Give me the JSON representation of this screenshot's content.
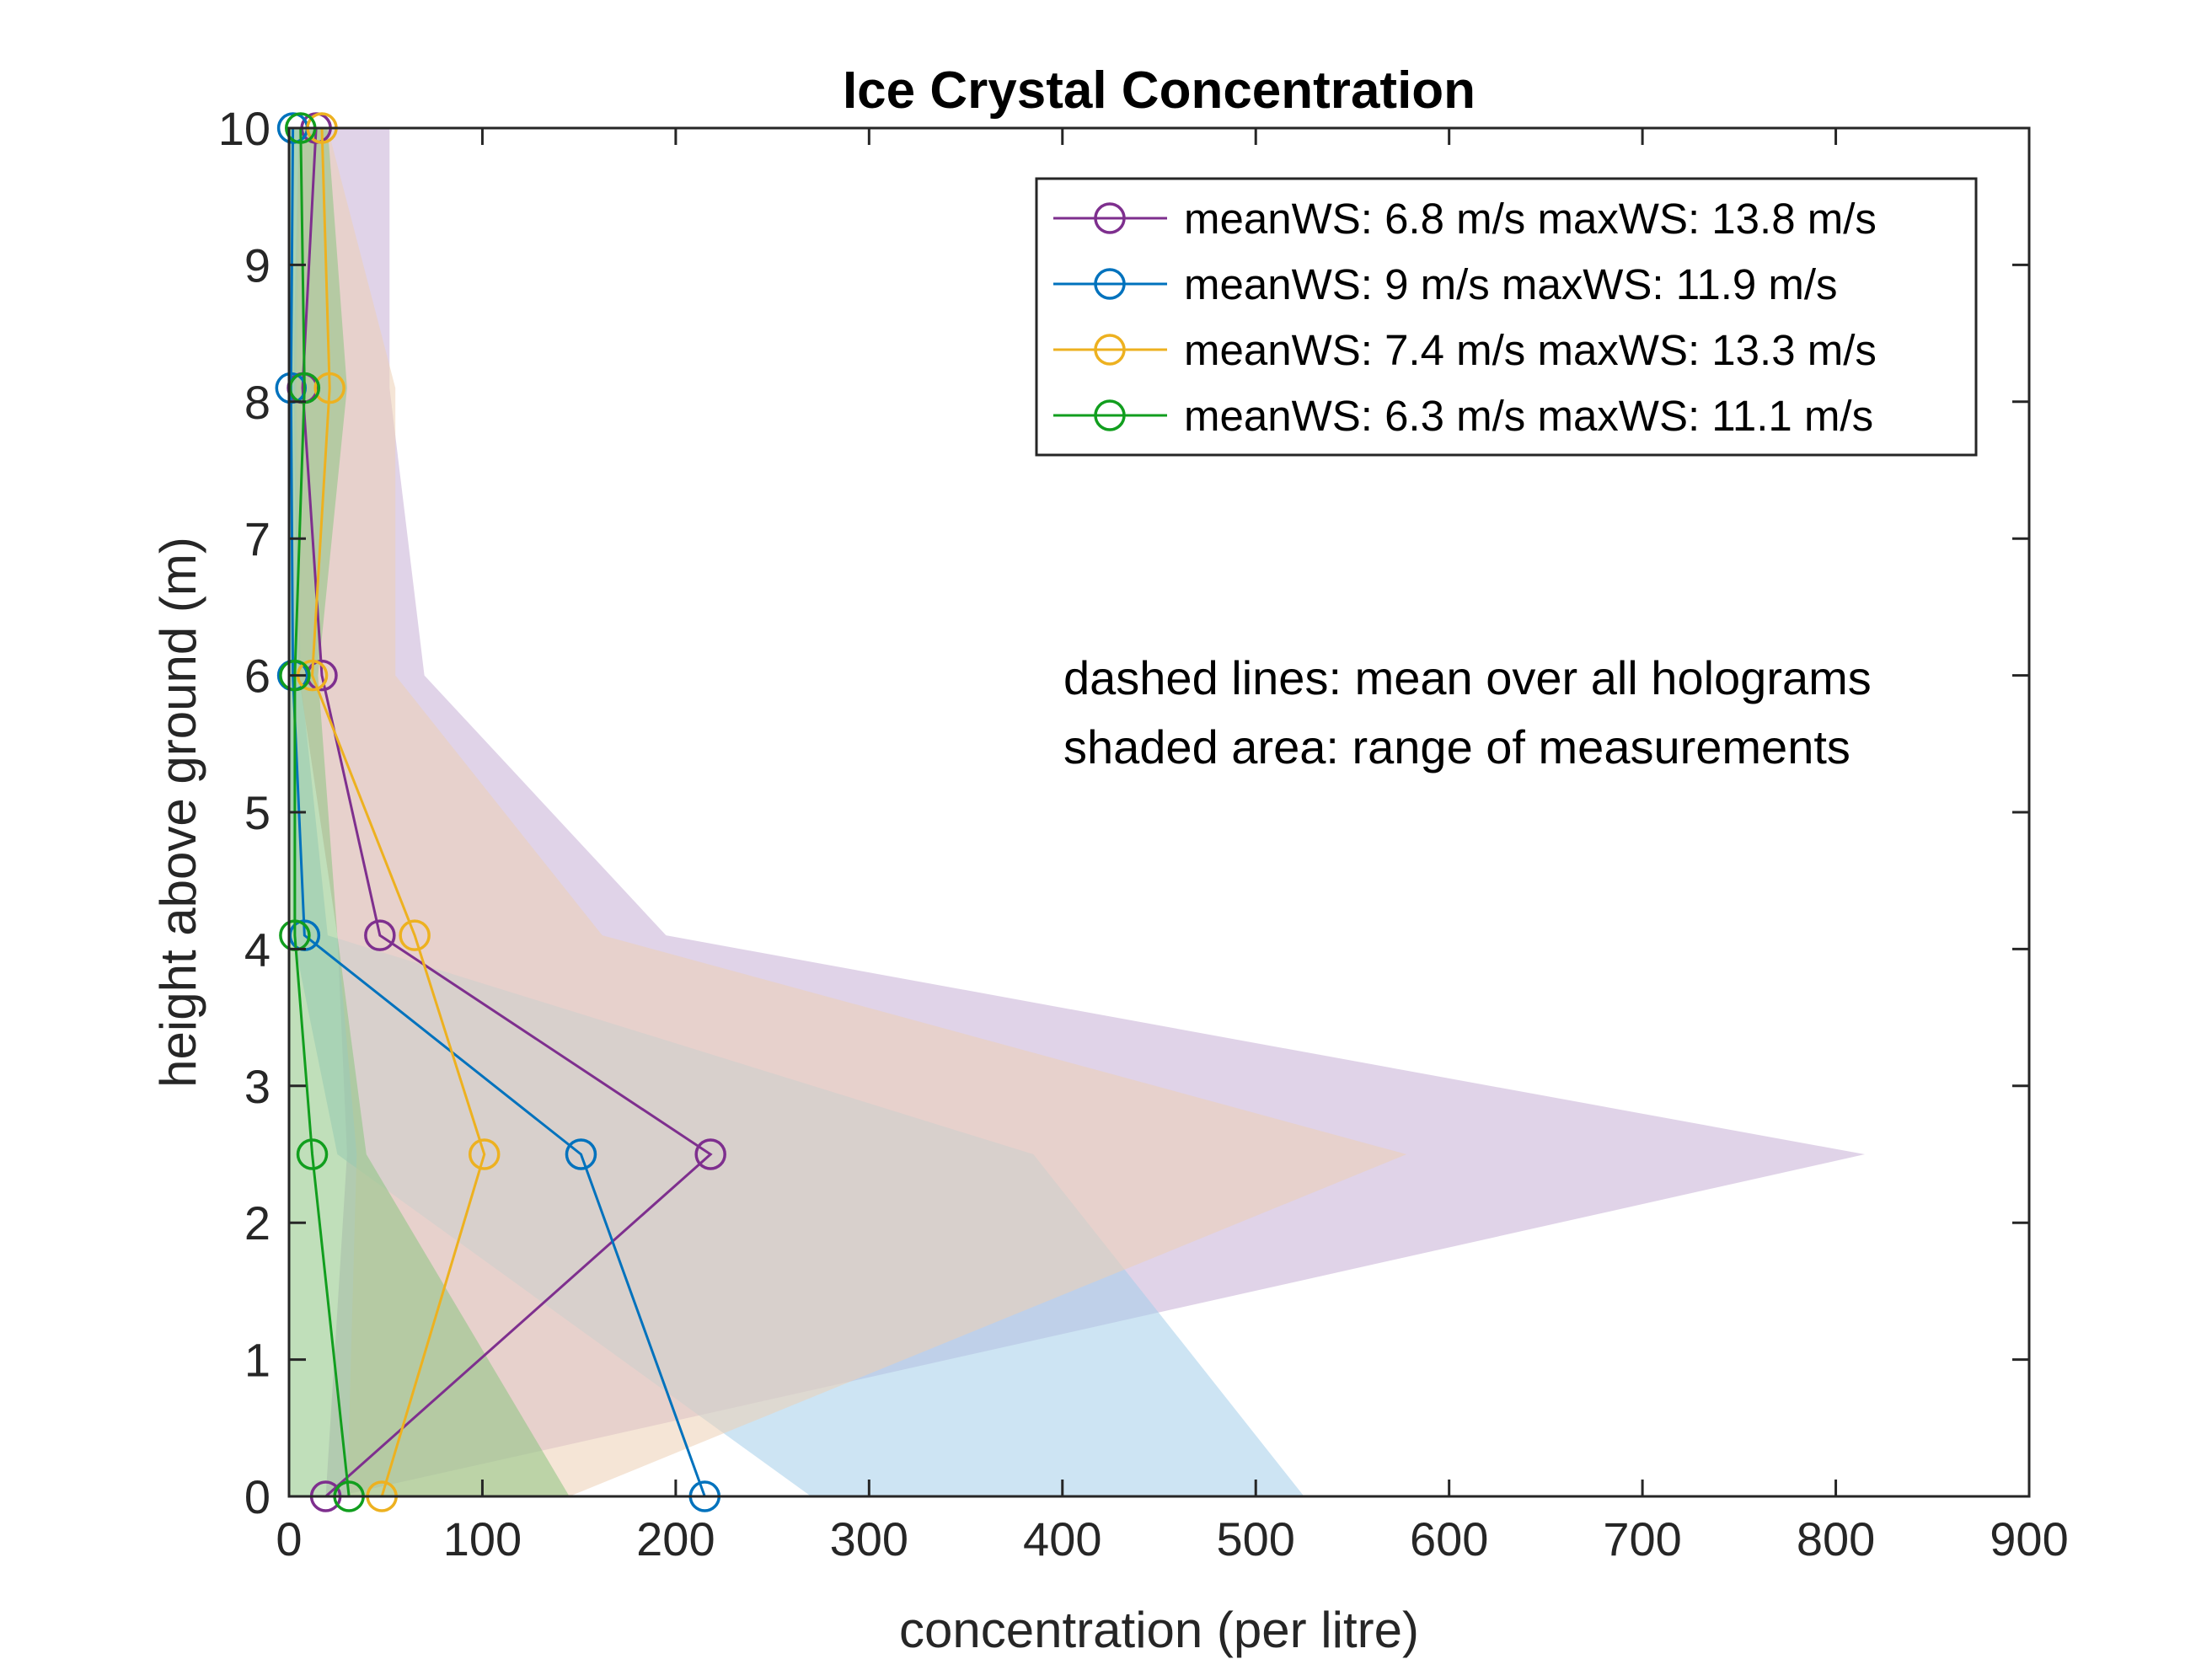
{
  "chart_data": {
    "type": "line",
    "title": "Ice Crystal Concentration",
    "xlabel": "concentration (per litre)",
    "ylabel": "height above ground (m)",
    "xlim": [
      0,
      900
    ],
    "ylim": [
      0,
      10
    ],
    "xticks": [
      0,
      100,
      200,
      300,
      400,
      500,
      600,
      700,
      800,
      900
    ],
    "yticks": [
      0,
      1,
      2,
      3,
      4,
      5,
      6,
      7,
      8,
      9,
      10
    ],
    "grid": false,
    "legend_position": "top-right",
    "annotations": [
      "dashed lines: mean over all holograms",
      "shaded area: range of measurements"
    ],
    "series": [
      {
        "name": "meanWS: 6.8 m/s maxWS: 13.8 m/s",
        "color": "#7E2F8E",
        "marker": "circle",
        "points": [
          [
            19,
            0
          ],
          [
            218,
            2.5
          ],
          [
            47,
            4.1
          ],
          [
            17,
            6.0
          ],
          [
            7,
            8.1
          ],
          [
            14,
            10.0
          ]
        ],
        "range_color": "#C7AED6",
        "range_min": [
          [
            19,
            0
          ],
          [
            30,
            2.5
          ],
          [
            25,
            4.1
          ],
          [
            5,
            6.0
          ],
          [
            2,
            8.1
          ],
          [
            5,
            10.0
          ]
        ],
        "range_max": [
          [
            25,
            0
          ],
          [
            815,
            2.5
          ],
          [
            195,
            4.1
          ],
          [
            70,
            6.0
          ],
          [
            52,
            8.1
          ],
          [
            52,
            10.0
          ]
        ]
      },
      {
        "name": "meanWS: 9 m/s    maxWS: 11.9 m/s",
        "color": "#0072BD",
        "marker": "circle",
        "points": [
          [
            215,
            0
          ],
          [
            151,
            2.5
          ],
          [
            8,
            4.1
          ],
          [
            2,
            6.0
          ],
          [
            1,
            8.1
          ],
          [
            2,
            10.0
          ]
        ],
        "range_color": "#A4CDEA",
        "range_min": [
          [
            270,
            0
          ],
          [
            25,
            2.5
          ],
          [
            2,
            4.1
          ],
          [
            0,
            6.0
          ],
          [
            0,
            8.1
          ],
          [
            0,
            10.0
          ]
        ],
        "range_max": [
          [
            525,
            0
          ],
          [
            385,
            2.5
          ],
          [
            20,
            4.1
          ],
          [
            6,
            6.0
          ],
          [
            4,
            8.1
          ],
          [
            6,
            10.0
          ]
        ]
      },
      {
        "name": "meanWS: 7.4 m/s maxWS: 13.3 m/s",
        "color": "#EDB120",
        "marker": "circle",
        "points": [
          [
            48,
            0
          ],
          [
            101,
            2.5
          ],
          [
            65,
            4.1
          ],
          [
            12,
            6.0
          ],
          [
            21,
            8.1
          ],
          [
            17,
            10.0
          ]
        ],
        "range_color": "#EDD0B4",
        "range_min": [
          [
            30,
            0
          ],
          [
            35,
            2.5
          ],
          [
            25,
            4.1
          ],
          [
            5,
            6.0
          ],
          [
            3,
            8.1
          ],
          [
            5,
            10.0
          ]
        ],
        "range_max": [
          [
            145,
            0
          ],
          [
            578,
            2.5
          ],
          [
            162,
            4.1
          ],
          [
            55,
            6.0
          ],
          [
            55,
            8.1
          ],
          [
            20,
            10.0
          ]
        ]
      },
      {
        "name": "meanWS: 6.3 m/s maxWS: 11.1 m/s",
        "color": "#119E1E",
        "marker": "circle",
        "points": [
          [
            31,
            0
          ],
          [
            12,
            2.5
          ],
          [
            3,
            4.1
          ],
          [
            3,
            6.0
          ],
          [
            8,
            8.1
          ],
          [
            6,
            10.0
          ]
        ],
        "range_color": "#8CC482",
        "range_min": [
          [
            0,
            0
          ],
          [
            0,
            2.5
          ],
          [
            0,
            4.1
          ],
          [
            0,
            6.0
          ],
          [
            0,
            8.1
          ],
          [
            0,
            10.0
          ]
        ],
        "range_max": [
          [
            145,
            0
          ],
          [
            40,
            2.5
          ],
          [
            25,
            4.1
          ],
          [
            15,
            6.0
          ],
          [
            30,
            8.1
          ],
          [
            20,
            10.0
          ]
        ]
      }
    ]
  }
}
